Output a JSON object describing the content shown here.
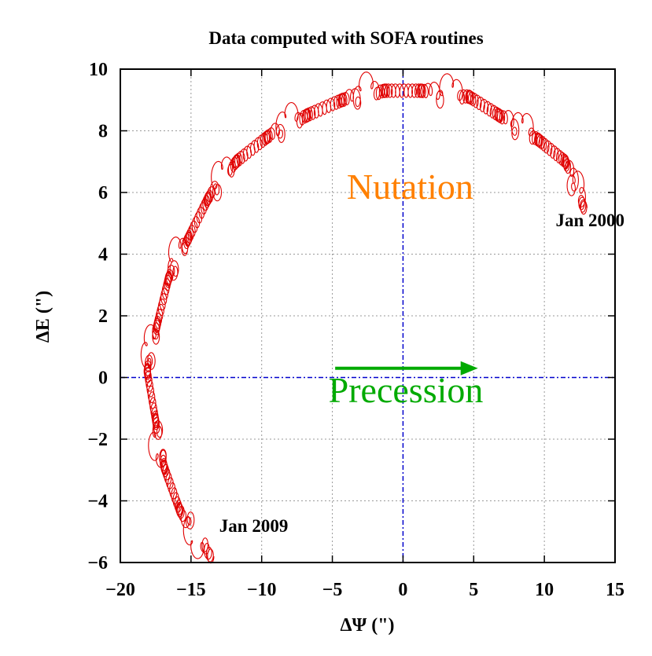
{
  "chart_data": {
    "type": "line",
    "title": "Data computed with SOFA routines",
    "xlabel": "ΔΨ (\")",
    "ylabel": "ΔE (\")",
    "xlim": [
      -20,
      15
    ],
    "ylim": [
      -6,
      10
    ],
    "xticks": [
      -20,
      -15,
      -10,
      -5,
      0,
      5,
      10,
      15
    ],
    "yticks": [
      -6,
      -4,
      -2,
      0,
      2,
      4,
      6,
      8,
      10
    ],
    "xtick_labels": [
      "−20",
      "−15",
      "−10",
      "−5",
      "0",
      "5",
      "10",
      "15"
    ],
    "ytick_labels": [
      "−6",
      "−4",
      "−2",
      "0",
      "2",
      "4",
      "6",
      "8",
      "10"
    ],
    "grid": true,
    "series": [
      {
        "color": "#e00000",
        "start": [
          12.8,
          5.5
        ],
        "end": [
          -13.6,
          -5.8
        ],
        "arc_center": [
          -2.8,
          0.5
        ],
        "annual_loop_centers": [
          [
            11.5,
            7.0
          ],
          [
            9.6,
            7.7
          ],
          [
            6.8,
            8.5
          ],
          [
            4.7,
            9.1
          ],
          [
            1.3,
            9.3
          ],
          [
            -1.3,
            9.3
          ],
          [
            -4.3,
            9.0
          ],
          [
            -6.8,
            8.5
          ],
          [
            -9.6,
            7.8
          ],
          [
            -11.8,
            7.0
          ],
          [
            -13.8,
            5.8
          ],
          [
            -15.2,
            4.5
          ],
          [
            -16.6,
            3.2
          ],
          [
            -17.4,
            1.7
          ],
          [
            -18.1,
            0.2
          ],
          [
            -17.5,
            -1.4
          ],
          [
            -16.9,
            -2.9
          ],
          [
            -15.8,
            -4.3
          ]
        ]
      }
    ],
    "annotations": [
      {
        "text": "Jan 2000",
        "x": 10.8,
        "y": 4.9
      },
      {
        "text": "Jan 2009",
        "x": -13.0,
        "y": -5.0
      },
      {
        "text": "Nutation",
        "x": 0.5,
        "y": 5.8,
        "color": "#ff8000"
      },
      {
        "text": "Precession",
        "x": 0.2,
        "y": -0.8,
        "color": "#00aa00"
      }
    ],
    "arrow": {
      "from": [
        -4.8,
        0.3
      ],
      "to": [
        5.3,
        0.3
      ],
      "color": "#00aa00"
    },
    "reference_lines": {
      "x": 0,
      "y": 0,
      "color": "#0000cc"
    }
  }
}
